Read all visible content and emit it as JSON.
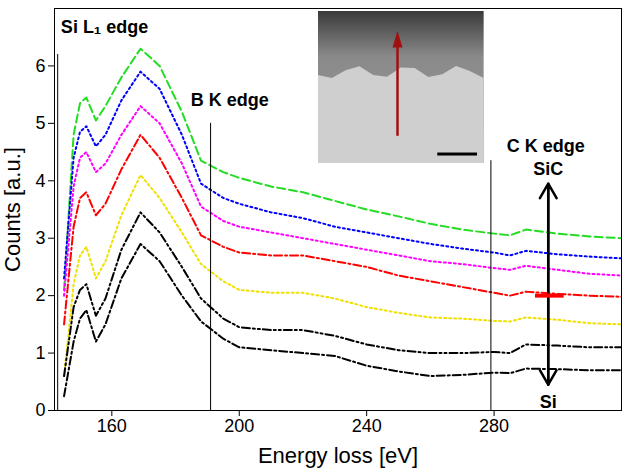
{
  "chart_data": {
    "type": "line",
    "xlabel": "Energy loss [eV]",
    "ylabel": "Counts [a.u.]",
    "xlim": [
      142,
      320
    ],
    "ylim": [
      0,
      7
    ],
    "xticks": [
      160,
      200,
      240,
      280
    ],
    "yticks": [
      0,
      1,
      2,
      3,
      4,
      5,
      6
    ],
    "grid": false,
    "x": [
      145,
      148,
      150,
      152,
      155,
      158,
      163,
      169,
      175,
      182,
      188,
      195,
      200,
      210,
      220,
      230,
      240,
      250,
      260,
      270,
      280,
      285,
      290,
      300,
      310,
      320
    ],
    "series": [
      {
        "color": "#22dd22",
        "line_style": "dashed",
        "values": [
          2.1,
          4.8,
          5.35,
          5.45,
          5.05,
          5.3,
          5.8,
          6.3,
          6.0,
          5.2,
          4.35,
          4.15,
          4.05,
          3.9,
          3.8,
          3.65,
          3.5,
          3.38,
          3.25,
          3.15,
          3.08,
          3.05,
          3.15,
          3.08,
          3.03,
          3.0
        ]
      },
      {
        "color": "#0000ff",
        "line_style": "dotted",
        "values": [
          2.3,
          4.4,
          4.85,
          4.95,
          4.6,
          4.8,
          5.4,
          5.9,
          5.6,
          4.8,
          3.95,
          3.7,
          3.6,
          3.45,
          3.35,
          3.2,
          3.1,
          3.0,
          2.9,
          2.82,
          2.75,
          2.7,
          2.78,
          2.72,
          2.68,
          2.65
        ]
      },
      {
        "color": "#ff00ff",
        "line_style": "dotted",
        "values": [
          2.0,
          3.9,
          4.4,
          4.5,
          4.15,
          4.3,
          4.8,
          5.3,
          5.0,
          4.3,
          3.55,
          3.3,
          3.2,
          3.1,
          3.0,
          2.9,
          2.8,
          2.7,
          2.6,
          2.55,
          2.48,
          2.45,
          2.52,
          2.45,
          2.38,
          2.35
        ]
      },
      {
        "color": "#ff0000",
        "line_style": "dashdot",
        "values": [
          1.5,
          3.2,
          3.7,
          3.8,
          3.4,
          3.6,
          4.2,
          4.8,
          4.4,
          3.7,
          3.05,
          2.85,
          2.75,
          2.7,
          2.7,
          2.6,
          2.5,
          2.35,
          2.25,
          2.15,
          2.05,
          2.0,
          2.07,
          2.03,
          2.0,
          1.98
        ]
      },
      {
        "color": "#f0e000",
        "line_style": "dotted",
        "values": [
          0.6,
          2.2,
          2.7,
          2.85,
          2.3,
          2.6,
          3.4,
          4.1,
          3.7,
          3.1,
          2.55,
          2.25,
          2.1,
          2.05,
          2.05,
          1.95,
          1.8,
          1.7,
          1.62,
          1.6,
          1.56,
          1.55,
          1.62,
          1.58,
          1.52,
          1.5
        ]
      },
      {
        "color": "#000000",
        "line_style": "dashdotdot",
        "values": [
          0.6,
          1.8,
          2.1,
          2.2,
          1.65,
          1.95,
          2.8,
          3.45,
          3.1,
          2.5,
          1.95,
          1.6,
          1.45,
          1.4,
          1.4,
          1.3,
          1.15,
          1.05,
          1.0,
          1.0,
          1.02,
          1.0,
          1.15,
          1.13,
          1.1,
          1.1
        ]
      },
      {
        "color": "#000000",
        "line_style": "dashdot",
        "values": [
          0.25,
          1.2,
          1.6,
          1.75,
          1.2,
          1.5,
          2.3,
          2.9,
          2.6,
          2.0,
          1.55,
          1.25,
          1.1,
          1.05,
          1.0,
          0.95,
          0.78,
          0.68,
          0.6,
          0.62,
          0.66,
          0.65,
          0.73,
          0.72,
          0.7,
          0.7
        ]
      }
    ],
    "edges": [
      {
        "label": "Si L₁ edge",
        "x": 143,
        "ymax": 6.2
      },
      {
        "label": "B K edge",
        "x": 191,
        "ymax": 5.0
      },
      {
        "label": "C K edge",
        "x": 279,
        "ymax": 4.35
      }
    ],
    "arrow": {
      "x": 297,
      "y1": 0.45,
      "y2": 3.95
    },
    "arrow_labels": [
      {
        "text": "SiC",
        "x": 297,
        "y": 4.2
      },
      {
        "text": "Si",
        "x": 297,
        "y": 0.15
      }
    ],
    "marker": {
      "y": 2.0,
      "x1": 293,
      "x2": 302,
      "color": "#ff0000"
    }
  }
}
